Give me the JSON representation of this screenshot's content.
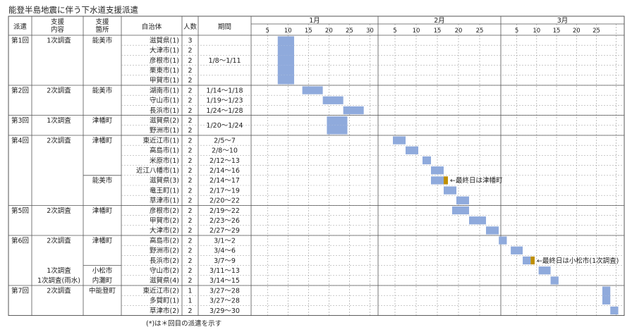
{
  "chart_data": {
    "type": "gantt",
    "title": "能登半島地震に伴う下水道支援派遣",
    "footnote": "(*)は＊回目の派遣を示す",
    "columns": {
      "dispatch": "派遣",
      "content": "支援\n内容",
      "location": "支援\n箇所",
      "municipality": "自治体",
      "count": "人数",
      "period": "期間"
    },
    "months": [
      "1月",
      "2月",
      "3月"
    ],
    "month_days": [
      31,
      29,
      31
    ],
    "tick_days": [
      5,
      10,
      15,
      20,
      25,
      30
    ],
    "rows": [
      {
        "muni": "滋賀県(1)",
        "count": "3",
        "start": "1/8",
        "end": "1/11"
      },
      {
        "muni": "大津市(1)",
        "count": "2",
        "start": "1/8",
        "end": "1/11"
      },
      {
        "muni": "彦根市(1)",
        "count": "2",
        "start": "1/8",
        "end": "1/11"
      },
      {
        "muni": "栗東市(1)",
        "count": "2",
        "start": "1/8",
        "end": "1/11"
      },
      {
        "muni": "甲賀市(1)",
        "count": "2",
        "start": "1/8",
        "end": "1/11"
      },
      {
        "muni": "湖南市(1)",
        "count": "2",
        "period": "1/14～1/18",
        "start": "1/14",
        "end": "1/18"
      },
      {
        "muni": "守山市(1)",
        "count": "2",
        "period": "1/19～1/23",
        "start": "1/19",
        "end": "1/23"
      },
      {
        "muni": "長浜市(1)",
        "count": "2",
        "period": "1/24～1/28",
        "start": "1/24",
        "end": "1/28"
      },
      {
        "muni": "滋賀県(2)",
        "count": "2",
        "start": "1/20",
        "end": "1/24"
      },
      {
        "muni": "野洲市(1)",
        "count": "2",
        "start": "1/20",
        "end": "1/24"
      },
      {
        "muni": "東近江市(1)",
        "count": "2",
        "period": "2/5～7",
        "start": "2/5",
        "end": "2/7"
      },
      {
        "muni": "高島市(1)",
        "count": "2",
        "period": "2/8～10",
        "start": "2/8",
        "end": "2/10"
      },
      {
        "muni": "米原市(1)",
        "count": "2",
        "period": "2/12～13",
        "start": "2/12",
        "end": "2/13"
      },
      {
        "muni": "近江八幡市(1)",
        "count": "2",
        "period": "2/14～16",
        "start": "2/14",
        "end": "2/16"
      },
      {
        "muni": "滋賀県(3)",
        "count": "2",
        "period": "2/14～17",
        "start": "2/14",
        "end": "2/17",
        "last_day_other": true
      },
      {
        "muni": "竜王町(1)",
        "count": "2",
        "period": "2/17～19",
        "start": "2/17",
        "end": "2/19"
      },
      {
        "muni": "草津市(1)",
        "count": "2",
        "period": "2/20～22",
        "start": "2/20",
        "end": "2/22"
      },
      {
        "muni": "彦根市(2)",
        "count": "2",
        "period": "2/19～22",
        "start": "2/19",
        "end": "2/22"
      },
      {
        "muni": "甲賀市(2)",
        "count": "2",
        "period": "2/23～26",
        "start": "2/23",
        "end": "2/26"
      },
      {
        "muni": "大津市(2)",
        "count": "2",
        "period": "2/27～29",
        "start": "2/27",
        "end": "2/29"
      },
      {
        "muni": "高島市(2)",
        "count": "2",
        "period": "3/1～2",
        "start": "3/1",
        "end": "3/2"
      },
      {
        "muni": "野洲市(2)",
        "count": "2",
        "period": "3/4～6",
        "start": "3/4",
        "end": "3/6"
      },
      {
        "muni": "長浜市(2)",
        "count": "2",
        "period": "3/7～9",
        "start": "3/7",
        "end": "3/9",
        "last_day_other": true
      },
      {
        "muni": "守山市(2)",
        "count": "2",
        "period": "3/11～13",
        "start": "3/11",
        "end": "3/13"
      },
      {
        "muni": "滋賀県(4)",
        "count": "2",
        "period": "3/14～15",
        "start": "3/14",
        "end": "3/15"
      },
      {
        "muni": "東近江市(2)",
        "count": "1",
        "period": "3/27～28",
        "start": "3/27",
        "end": "3/28"
      },
      {
        "muni": "多賀町(1)",
        "count": "1",
        "period": "3/27～28",
        "start": "3/27",
        "end": "3/28"
      },
      {
        "muni": "草津市(2)",
        "count": "2",
        "period": "3/29～30",
        "start": "3/29",
        "end": "3/30"
      }
    ],
    "groups": [
      {
        "label": "第1回",
        "rows": [
          0,
          5
        ]
      },
      {
        "label": "第2回",
        "rows": [
          5,
          8
        ]
      },
      {
        "label": "第3回",
        "rows": [
          8,
          10
        ]
      },
      {
        "label": "第4回",
        "rows": [
          10,
          17
        ]
      },
      {
        "label": "第5回",
        "rows": [
          17,
          20
        ]
      },
      {
        "label": "第6回",
        "rows": [
          20,
          25
        ]
      },
      {
        "label": "第7回",
        "rows": [
          25,
          28
        ]
      }
    ],
    "content_cells": [
      {
        "text": "1次調査",
        "row": 0
      },
      {
        "text": "2次調査",
        "row": 5
      },
      {
        "text": "1次調査",
        "row": 8
      },
      {
        "text": "2次調査",
        "row": 10
      },
      {
        "text": "2次調査",
        "row": 17
      },
      {
        "text": "2次調査",
        "row": 20
      },
      {
        "text": "1次調査",
        "row": 23
      },
      {
        "text": "1次調査(雨水)",
        "row": 24
      },
      {
        "text": "2次調査",
        "row": 25
      }
    ],
    "location_cells": [
      {
        "text": "能美市",
        "row": 0
      },
      {
        "text": "能美市",
        "row": 5
      },
      {
        "text": "津幡町",
        "row": 8
      },
      {
        "text": "津幡町",
        "row": 10
      },
      {
        "text": "能美市",
        "row": 14
      },
      {
        "text": "津幡町",
        "row": 17
      },
      {
        "text": "津幡町",
        "row": 20
      },
      {
        "text": "小松市",
        "row": 23
      },
      {
        "text": "内灘町",
        "row": 24
      },
      {
        "text": "中能登町",
        "row": 25
      }
    ],
    "merged_periods": [
      {
        "text": "1/8～1/11",
        "rows": [
          0,
          5
        ]
      },
      {
        "text": "1/20～1/24",
        "rows": [
          8,
          10
        ]
      }
    ],
    "annotations": [
      {
        "text": "←最終日は津幡町",
        "row": 14
      },
      {
        "text": "←最終日は小松市(1次調査)",
        "row": 22
      }
    ],
    "colors": {
      "bar": "#8faadc",
      "bar_last_day": "#bf8f00"
    }
  }
}
